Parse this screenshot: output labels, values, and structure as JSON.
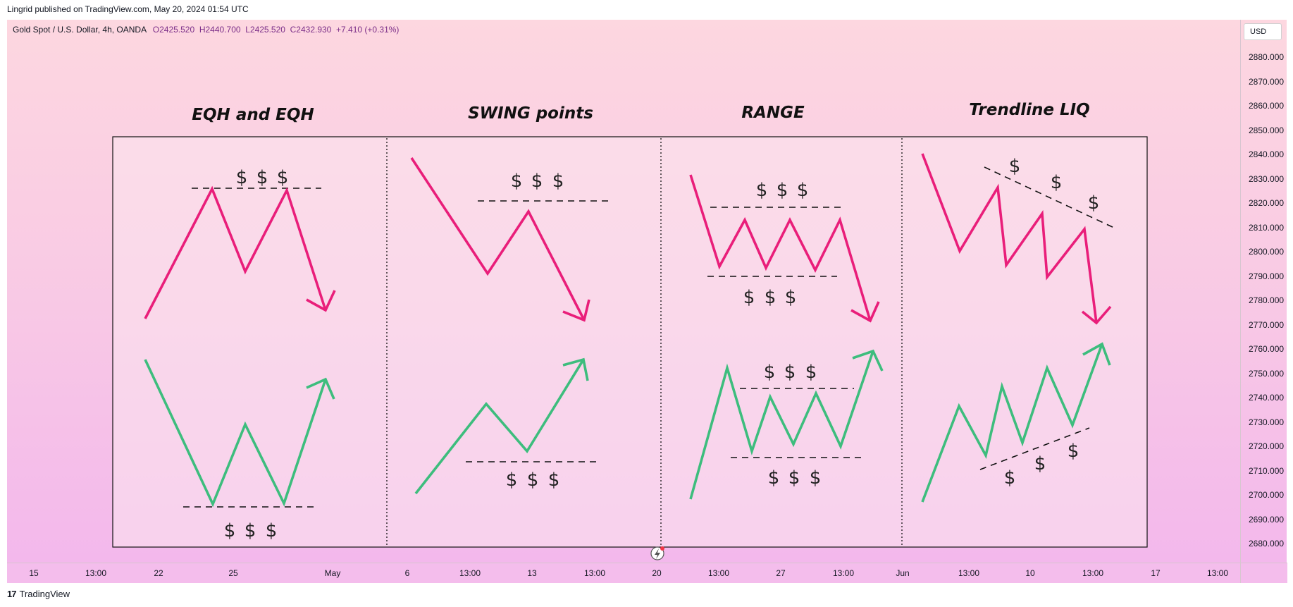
{
  "header": {
    "published_line": "Lingrid published on TradingView.com, May 20, 2024 01:54 UTC"
  },
  "legend": {
    "symbol": "Gold Spot / U.S. Dollar, 4h, OANDA",
    "open": "O2425.520",
    "high": "H2440.700",
    "low": "L2425.520",
    "close": "C2432.930",
    "change": "+7.410 (+0.31%)"
  },
  "price_scale": {
    "currency": "USD",
    "ticks": [
      "2880.000",
      "2870.000",
      "2860.000",
      "2850.000",
      "2840.000",
      "2830.000",
      "2820.000",
      "2810.000",
      "2800.000",
      "2790.000",
      "2780.000",
      "2770.000",
      "2760.000",
      "2750.000",
      "2740.000",
      "2730.000",
      "2720.000",
      "2710.000",
      "2700.000",
      "2690.000",
      "2680.000"
    ]
  },
  "time_scale": {
    "ticks": [
      "15",
      "13:00",
      "22",
      "25",
      "May",
      "6",
      "13:00",
      "13",
      "13:00",
      "20",
      "13:00",
      "27",
      "13:00",
      "Jun",
      "13:00",
      "10",
      "13:00",
      "17",
      "13:00"
    ]
  },
  "footer": {
    "logo_text": "TradingView",
    "logo_mark": "17"
  },
  "colors": {
    "bearish": "#e91e7a",
    "bullish": "#3dbd7d",
    "panel_border": "#111111",
    "background_top": "#fdd7e0",
    "background_bottom": "#f3b8ec"
  },
  "chart_data": {
    "type": "line",
    "panels": [
      {
        "title": "EQH and EQH",
        "bearish": {
          "liquidity_labels": [
            "$",
            "$",
            "$"
          ]
        },
        "bullish": {
          "liquidity_labels": [
            "$",
            "$",
            "$"
          ]
        }
      },
      {
        "title": "SWING points",
        "bearish": {
          "liquidity_labels": [
            "$",
            "$",
            "$"
          ]
        },
        "bullish": {
          "liquidity_labels": [
            "$",
            "$",
            "$"
          ]
        }
      },
      {
        "title": "RANGE",
        "bearish": {
          "liquidity_labels": [
            "$",
            "$",
            "$",
            "$",
            "$",
            "$"
          ]
        },
        "bullish": {
          "liquidity_labels": [
            "$",
            "$",
            "$",
            "$",
            "$",
            "$"
          ]
        }
      },
      {
        "title": "Trendline LIQ",
        "bearish": {
          "liquidity_labels": [
            "$",
            "$",
            "$"
          ]
        },
        "bullish": {
          "liquidity_labels": [
            "$",
            "$",
            "$"
          ]
        }
      }
    ],
    "y_range": [
      2680,
      2880
    ],
    "grid": false
  }
}
